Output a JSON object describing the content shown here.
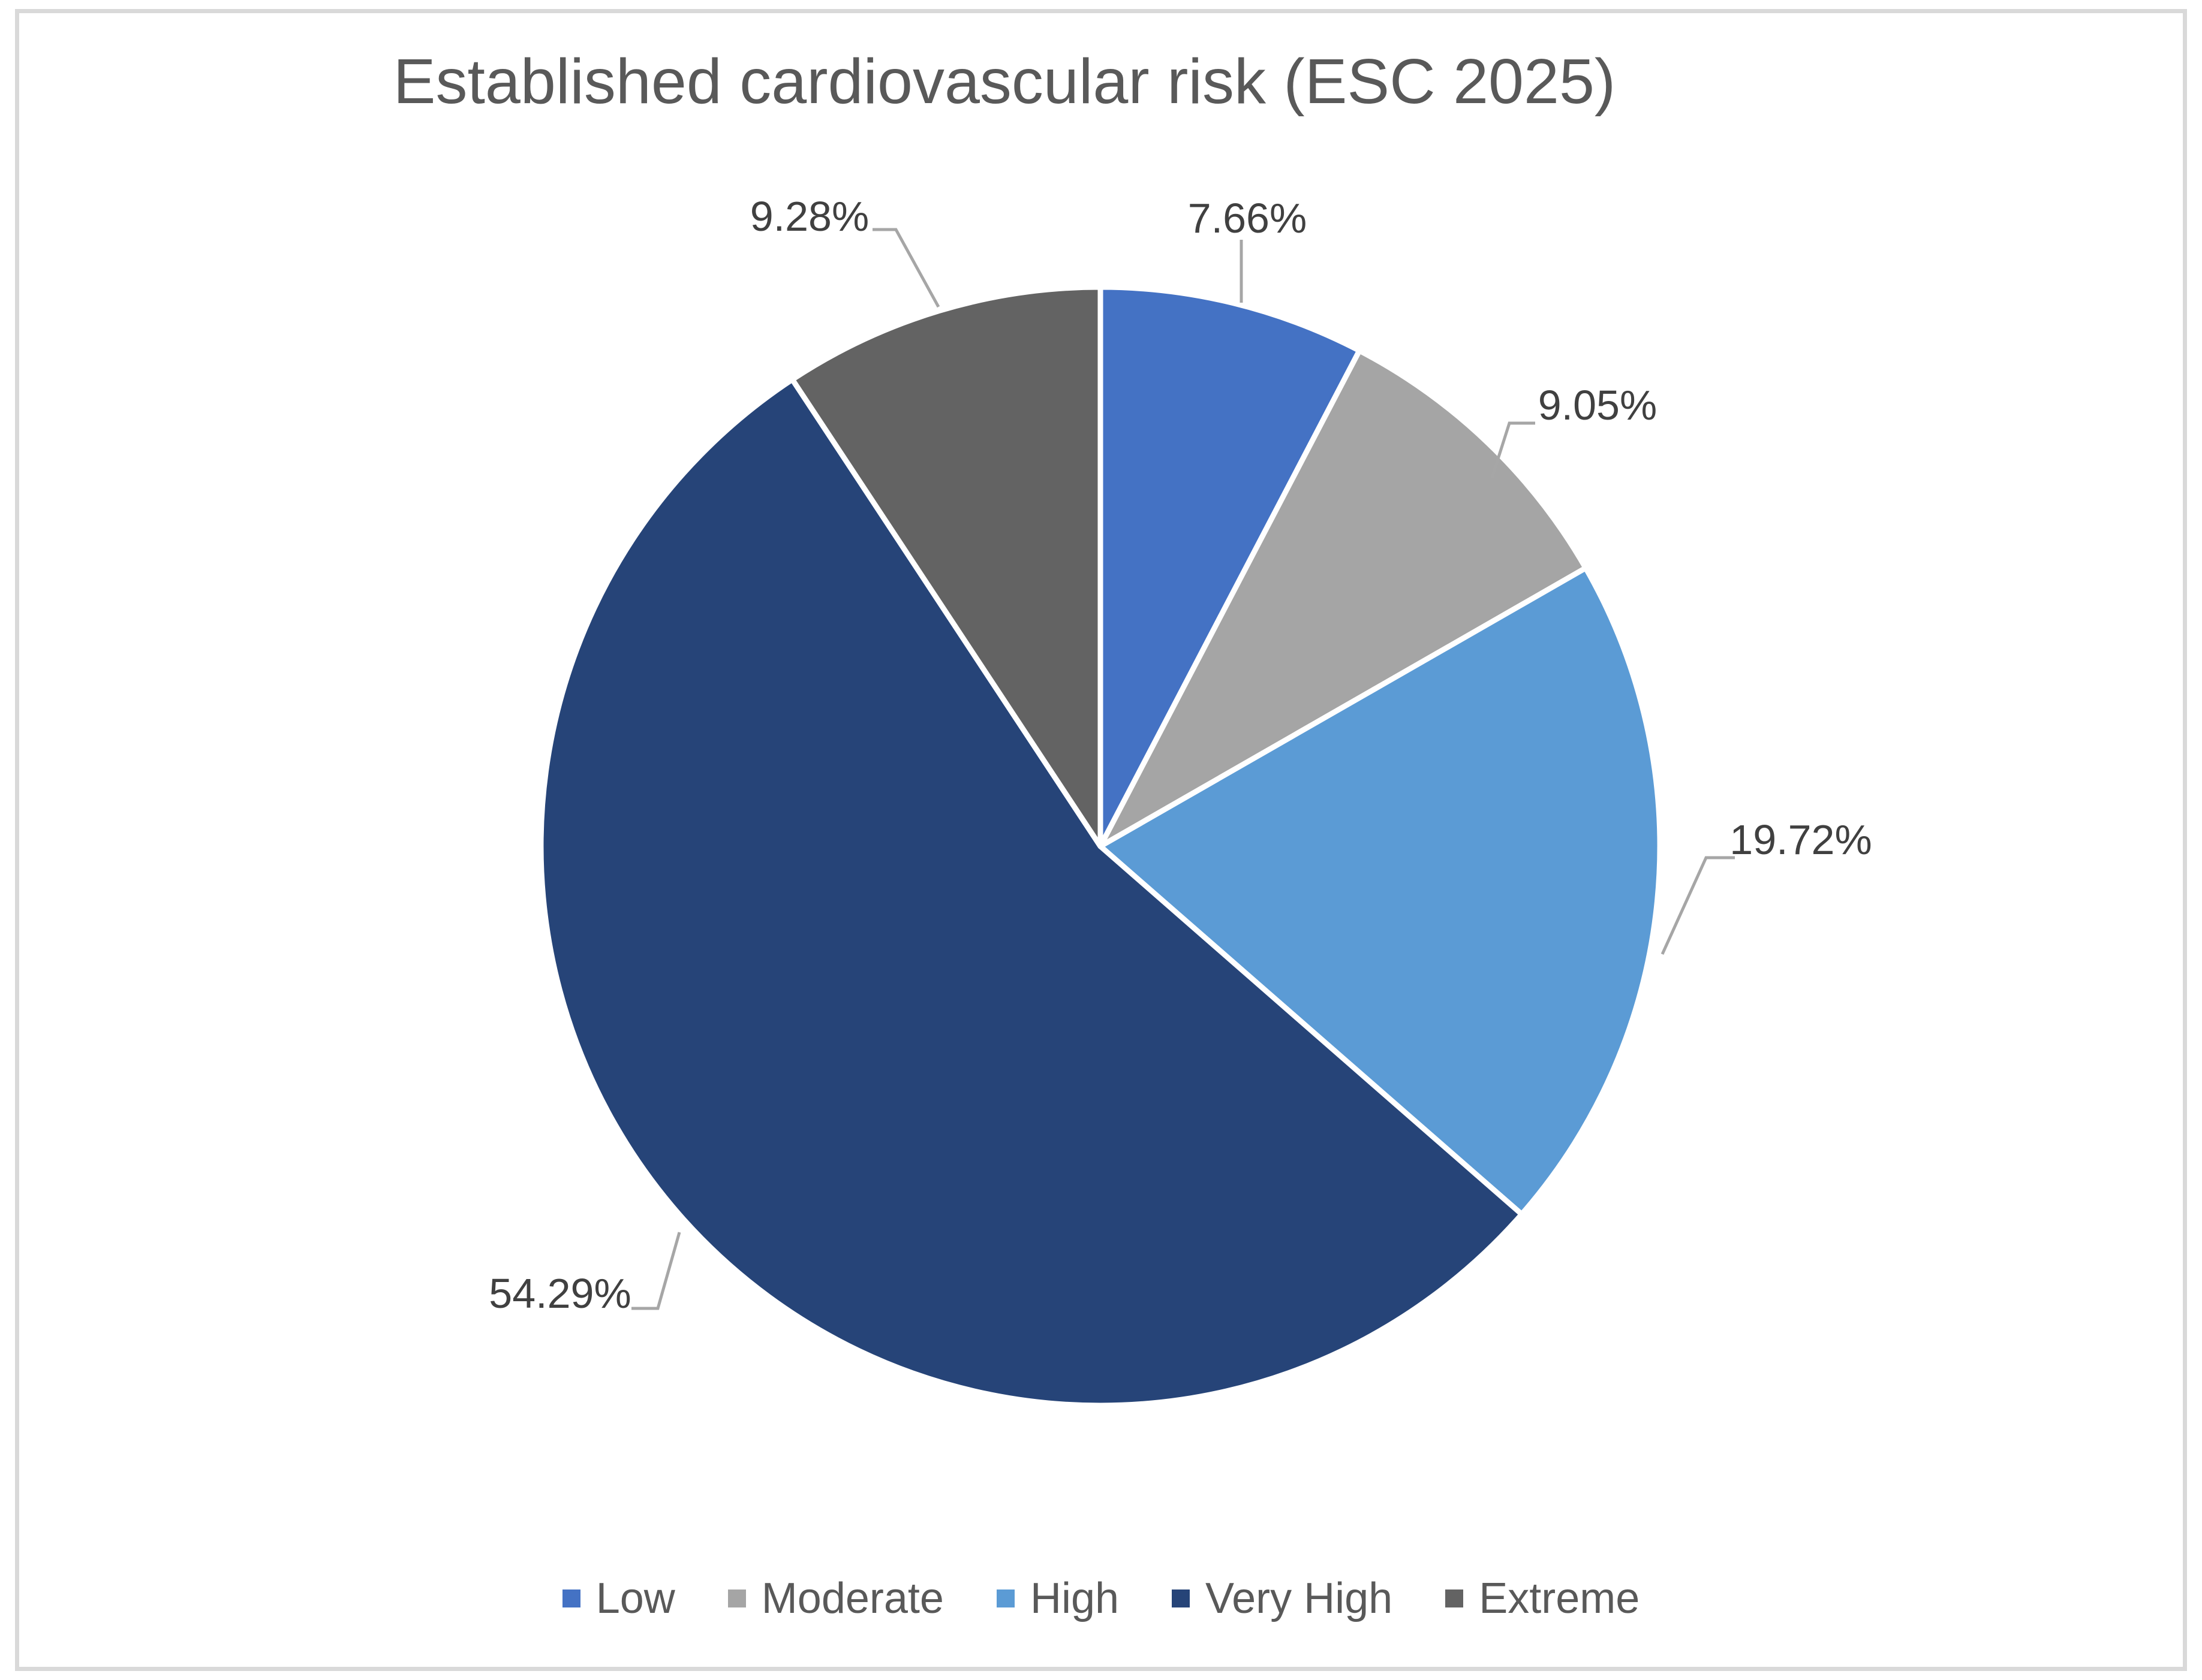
{
  "chart_data": {
    "type": "pie",
    "title": "Established cardiovascular risk (ESC 2025)",
    "categories": [
      "Low",
      "Moderate",
      "High",
      "Very High",
      "Extreme"
    ],
    "values": [
      7.66,
      9.05,
      19.72,
      54.29,
      9.28
    ],
    "data_labels": [
      "7.66%",
      "9.05%",
      "19.72%",
      "54.29%",
      "9.28%"
    ],
    "colors": [
      "#4472C4",
      "#A5A5A5",
      "#5B9BD5",
      "#264478",
      "#636363"
    ],
    "legend_position": "bottom",
    "start_angle_deg": 0,
    "direction": "clockwise",
    "units": "percent",
    "total": 100
  },
  "styles": {
    "background": "#FFFFFF",
    "frame_border": "#D9D9D9",
    "title_color": "#595959",
    "legend_text_color": "#595959",
    "data_label_color": "#404040",
    "leader_line_color": "#A6A6A6",
    "slice_separator": "#FFFFFF"
  }
}
